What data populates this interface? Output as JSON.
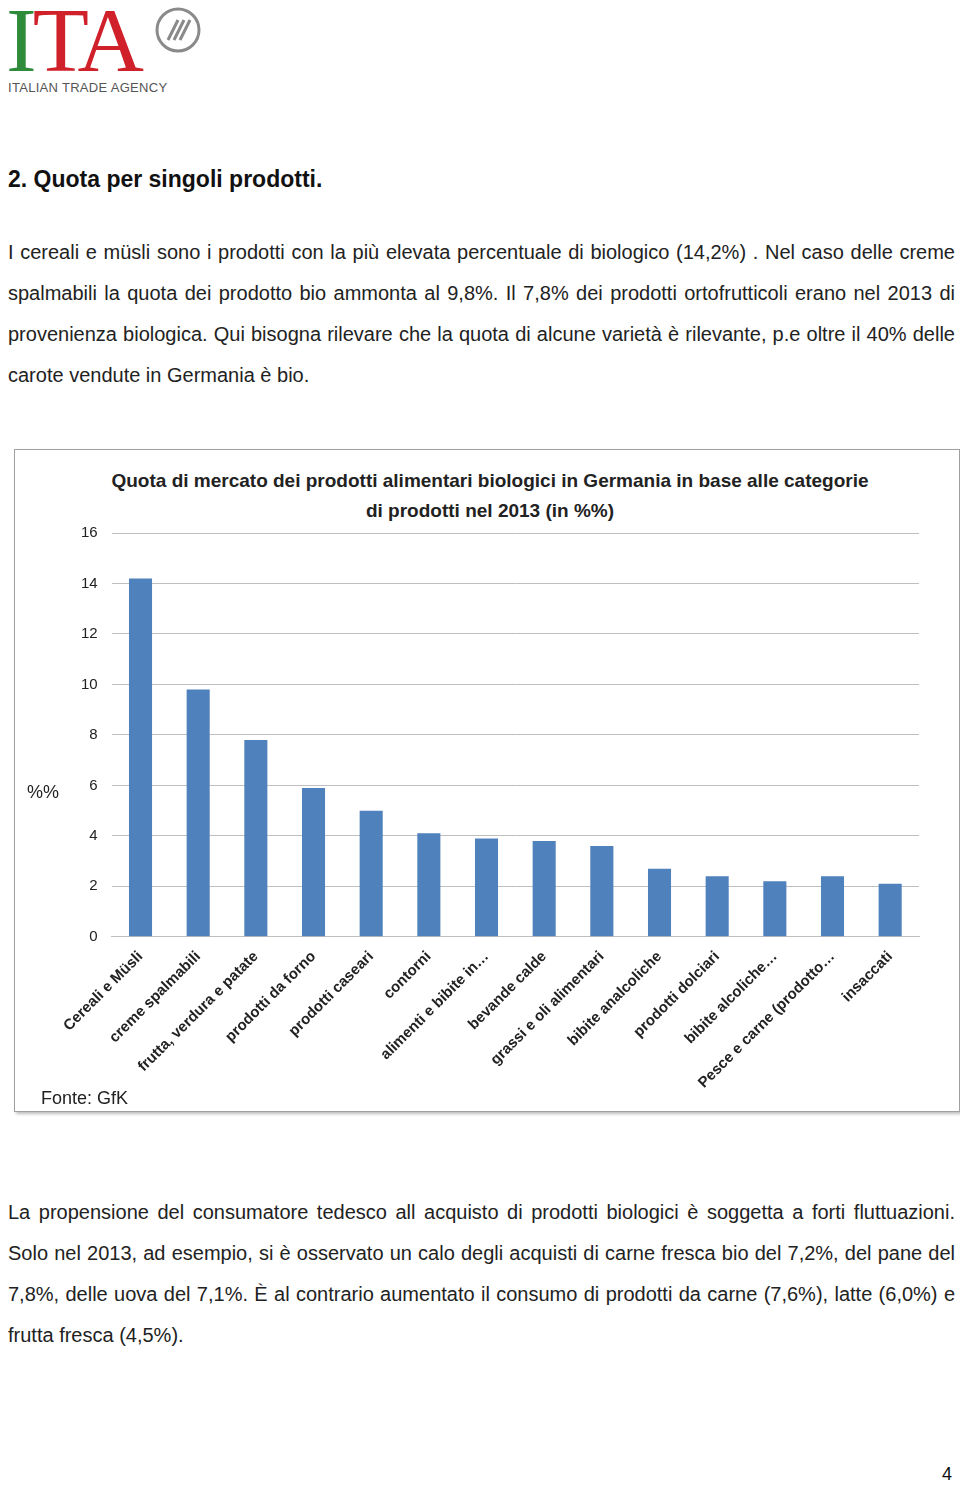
{
  "header": {
    "logo": "ITA",
    "agency": "ITALIAN TRADE AGENCY"
  },
  "heading": "2. Quota per singoli prodotti.",
  "paragraph_before": "I cereali e müsli sono i prodotti con la più elevata percentuale di biologico (14,2%) . Nel caso delle creme spalmabili la quota dei prodotto bio ammonta al 9,8%. Il 7,8% dei prodotti ortofrutticoli erano nel 2013 di provenienza biologica. Qui bisogna rilevare che la quota di alcune varietà è rilevante, p.e oltre il 40% delle carote vendute in Germania è bio.",
  "chart_data": {
    "type": "bar",
    "title": "Quota di mercato dei prodotti alimentari biologici in Germania in base alle categorie di prodotti nel 2013 (in %%)",
    "y_label": "%%",
    "note": "Fonte: GfK",
    "categories": [
      "Cereali e Müsli",
      "creme spalmabili",
      "frutta, verdura e patate",
      "prodotti da forno",
      "prodotti caseari",
      "contorni",
      "alimenti e bibite in…",
      "bevande calde",
      "grassi e oli alimentari",
      "bibite analcoliche",
      "prodotti dolciari",
      "bibite alcoliche…",
      "Pesce e carne (prodotto…",
      "insaccati"
    ],
    "values": [
      14.2,
      9.8,
      7.8,
      5.9,
      5.0,
      4.1,
      3.9,
      3.8,
      3.6,
      2.7,
      2.4,
      2.2,
      2.4,
      2.1
    ],
    "color": "#4f81bd",
    "ylim": [
      0,
      16
    ],
    "yticks": [
      0,
      2,
      4,
      6,
      8,
      10,
      12,
      14,
      16
    ],
    "grid": true
  },
  "paragraph_after": "La propensione del consumatore tedesco all acquisto di prodotti biologici è soggetta a forti fluttuazioni. Solo nel 2013, ad esempio, si è osservato un calo degli acquisti di carne fresca bio del 7,2%, del pane del 7,8%, delle uova del 7,1%. È al contrario aumentato il consumo di prodotti da carne (7,6%), latte (6,0%) e frutta fresca (4,5%).",
  "page_number": 4
}
